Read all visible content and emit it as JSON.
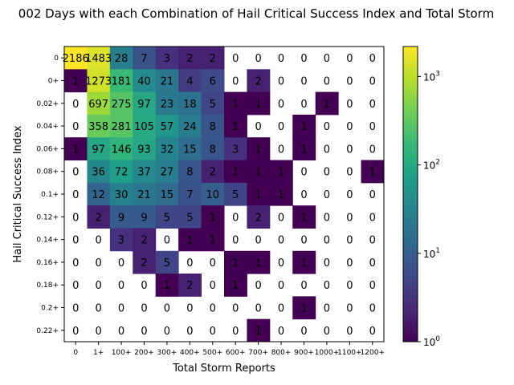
{
  "chart_data": {
    "type": "heatmap",
    "title": "002 Days with each Combination of Hail Critical Success Index and Total Storm",
    "xlabel": "Total Storm Reports",
    "ylabel": "Hail Critical Success Index",
    "x_categories": [
      "0",
      "1+",
      "100+",
      "200+",
      "300+",
      "400+",
      "500+",
      "600+",
      "700+",
      "800+",
      "900+",
      "1000+",
      "1100+",
      "1200+"
    ],
    "y_categories": [
      "0",
      "0+",
      "0.02+",
      "0.04+",
      "0.06+",
      "0.08+",
      "0.1+",
      "0.12+",
      "0.14+",
      "0.16+",
      "0.18+",
      "0.2+",
      "0.22+"
    ],
    "values": [
      [
        2186,
        1483,
        28,
        7,
        3,
        2,
        2,
        0,
        0,
        0,
        0,
        0,
        0,
        0
      ],
      [
        1,
        1273,
        181,
        40,
        21,
        4,
        6,
        0,
        2,
        0,
        0,
        0,
        0,
        0
      ],
      [
        0,
        697,
        275,
        97,
        23,
        18,
        5,
        1,
        1,
        0,
        0,
        1,
        0,
        0
      ],
      [
        0,
        358,
        281,
        105,
        57,
        24,
        8,
        1,
        0,
        0,
        1,
        0,
        0,
        0
      ],
      [
        1,
        97,
        146,
        93,
        32,
        15,
        8,
        3,
        1,
        0,
        1,
        0,
        0,
        0
      ],
      [
        0,
        36,
        72,
        37,
        27,
        8,
        2,
        1,
        1,
        1,
        0,
        0,
        0,
        1
      ],
      [
        0,
        12,
        30,
        21,
        15,
        7,
        10,
        5,
        1,
        1,
        0,
        0,
        0,
        0
      ],
      [
        0,
        2,
        9,
        9,
        5,
        5,
        1,
        0,
        2,
        0,
        1,
        0,
        0,
        0
      ],
      [
        0,
        0,
        3,
        2,
        0,
        1,
        1,
        0,
        0,
        0,
        0,
        0,
        0,
        0
      ],
      [
        0,
        0,
        0,
        2,
        5,
        0,
        0,
        1,
        1,
        0,
        1,
        0,
        0,
        0
      ],
      [
        0,
        0,
        0,
        0,
        1,
        2,
        0,
        1,
        0,
        0,
        0,
        0,
        0,
        0
      ],
      [
        0,
        0,
        0,
        0,
        0,
        0,
        0,
        0,
        0,
        0,
        1,
        0,
        0,
        0
      ],
      [
        0,
        0,
        0,
        0,
        0,
        0,
        0,
        0,
        1,
        0,
        0,
        0,
        0,
        0
      ]
    ],
    "colorbar": {
      "scale": "log",
      "range": [
        1,
        2186
      ],
      "colormap": "viridis",
      "tick_labels": [
        "10",
        "10",
        "10",
        "10"
      ],
      "tick_exponents": [
        "0",
        "1",
        "2",
        "3"
      ],
      "tick_values": [
        1,
        10,
        100,
        1000
      ]
    },
    "grid": false,
    "legend": "colorbar-right"
  }
}
